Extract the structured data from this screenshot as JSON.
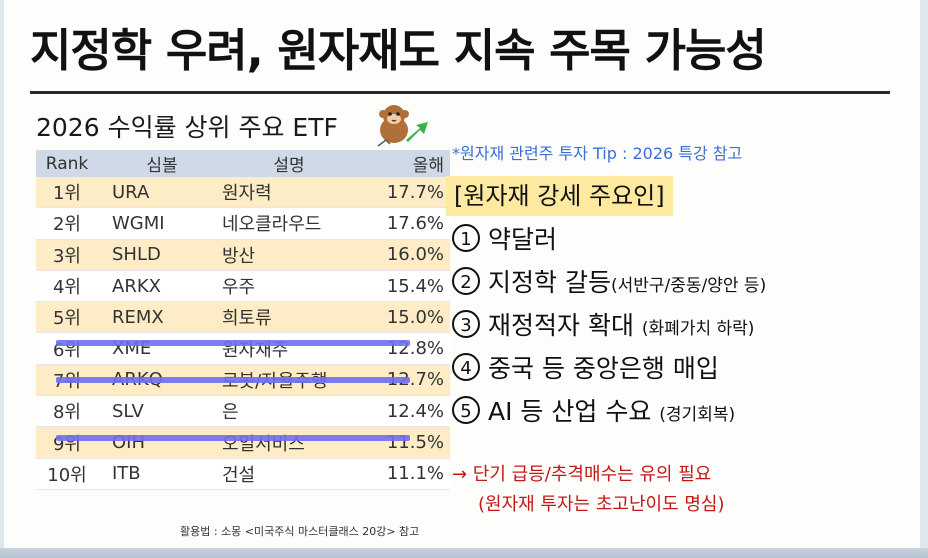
{
  "title": "지정학 우려, 원자재도 지속 주목 가능성",
  "table": {
    "title": "2026 수익률 상위 주요 ETF",
    "headers": [
      "Rank",
      "심볼",
      "설명",
      "올해"
    ],
    "rows": [
      [
        "1위",
        "URA",
        "원자력",
        "17.7%"
      ],
      [
        "2위",
        "WGMI",
        "네오클라우드",
        "17.6%"
      ],
      [
        "3위",
        "SHLD",
        "방산",
        "16.0%"
      ],
      [
        "4위",
        "ARKX",
        "우주",
        "15.4%"
      ],
      [
        "5위",
        "REMX",
        "희토류",
        "15.0%"
      ],
      [
        "6위",
        "XME",
        "원자재주",
        "12.8%"
      ],
      [
        "7위",
        "ARKQ",
        "로봇/자율주행",
        "12.7%"
      ],
      [
        "8위",
        "SLV",
        "은",
        "12.4%"
      ],
      [
        "9위",
        "OIH",
        "오일서비스",
        "11.5%"
      ],
      [
        "10위",
        "ITB",
        "건설",
        "11.1%"
      ]
    ],
    "highlight_color": "#6f6ef0",
    "source": "활용법 : 소몽 <미국주식 마스터클래스 20강> 참고"
  },
  "tip": "*원자재 관련주 투자 Tip : 2026 특강 참고",
  "factors": {
    "heading": "[원자재 강세 주요인]",
    "items": [
      {
        "num": "1",
        "text": "약달러",
        "sub": ""
      },
      {
        "num": "2",
        "text": "지정학 갈등",
        "sub": "(서반구/중동/양안 등)"
      },
      {
        "num": "3",
        "text": "재정적자 확대",
        "sub": "(화폐가치 하락)"
      },
      {
        "num": "4",
        "text": "중국 등 중앙은행 매입",
        "sub": ""
      },
      {
        "num": "5",
        "text": "AI 등 산업 수요",
        "sub": "(경기회복)"
      }
    ]
  },
  "warning": {
    "line1": "→ 단기 급등/추격매수는 유의 필요",
    "line2": "(원자재 투자는 초고난이도 명심)",
    "color": "#c41818"
  }
}
